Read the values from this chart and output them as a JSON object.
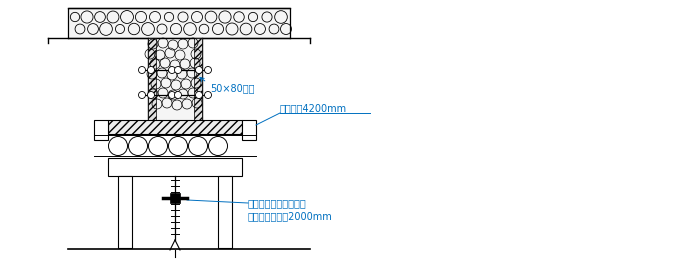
{
  "bg_color": "#ffffff",
  "line_color": "#000000",
  "label_color": "#0070c0",
  "label1": "50×80木方",
  "label2": "梁底木套4200mm",
  "label3": "可调项托，在梁底顺梁",
  "label4": "长方向设一排䈀2000mm",
  "figsize": [
    6.83,
    2.61
  ],
  "dpi": 100
}
